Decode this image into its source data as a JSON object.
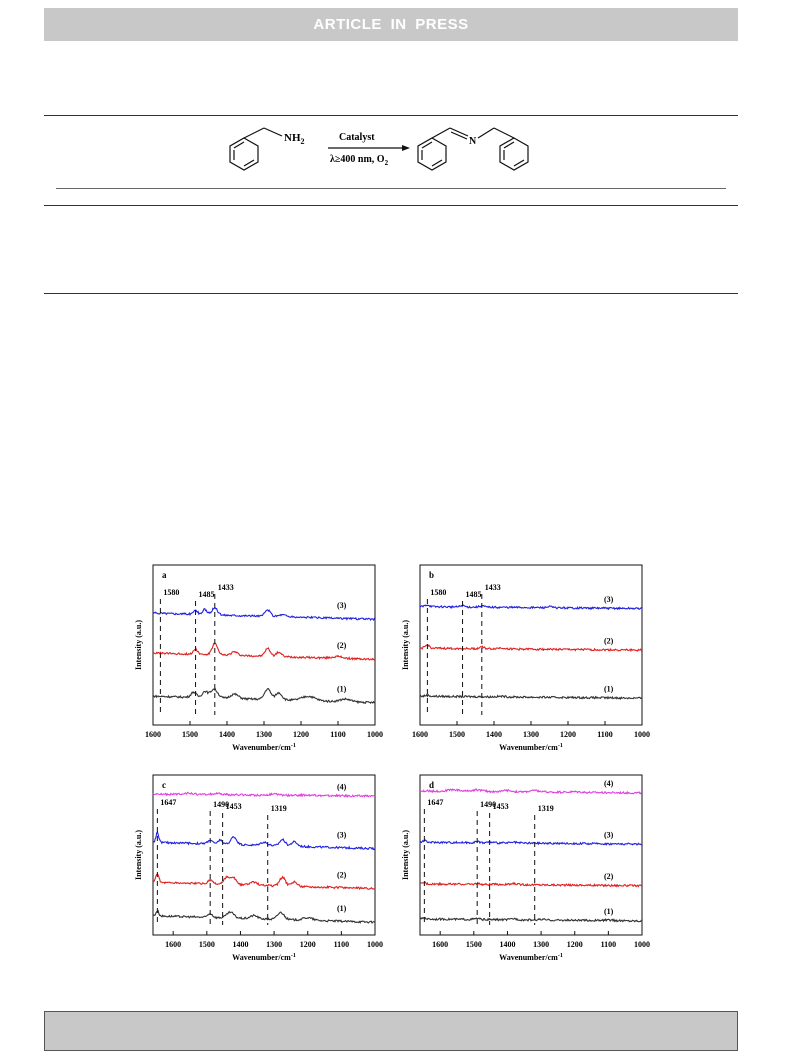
{
  "header": {
    "banner": "ARTICLE IN PRESS"
  },
  "scheme": {
    "reactant_label": "NH",
    "reactant_subscript": "2",
    "catalyst": "Catalyst",
    "conditions": "λ≥400 nm, O",
    "conditions_subscript": "2",
    "product_atom": "N"
  },
  "colors": {
    "c1": "#333333",
    "c2": "#e02020",
    "c3": "#2020e0",
    "c4": "#e040e0",
    "banner": "#c8c8c8"
  },
  "chart_data": [
    {
      "type": "line",
      "panel_label": "a",
      "xlabel": "Wavenumber/cm",
      "xlabel_sup": "-1",
      "ylabel": "Intensity (a.u.)",
      "xlim": [
        1600,
        1000
      ],
      "xticks": [
        1600,
        1500,
        1400,
        1300,
        1200,
        1100,
        1000
      ],
      "annotations": [
        1580,
        1485,
        1433
      ],
      "series": [
        {
          "name": "(1)",
          "offset": 0.18,
          "amp": 0.22,
          "peaks": [
            [
              1490,
              0.6,
              10
            ],
            [
              1460,
              0.7,
              10
            ],
            [
              1435,
              1.0,
              14
            ],
            [
              1380,
              0.5,
              15
            ],
            [
              1290,
              1.2,
              12
            ],
            [
              1260,
              0.8,
              12
            ],
            [
              1180,
              0.5,
              25
            ],
            [
              1080,
              0.3,
              20
            ]
          ]
        },
        {
          "name": "(2)",
          "offset": 0.45,
          "amp": 0.22,
          "peaks": [
            [
              1485,
              0.6,
              8
            ],
            [
              1433,
              1.3,
              10
            ],
            [
              1380,
              0.4,
              12
            ],
            [
              1290,
              0.9,
              10
            ],
            [
              1260,
              0.5,
              10
            ],
            [
              1100,
              0.2,
              20
            ]
          ]
        },
        {
          "name": "(3)",
          "offset": 0.7,
          "amp": 0.16,
          "peaks": [
            [
              1485,
              0.6,
              8
            ],
            [
              1460,
              0.8,
              8
            ],
            [
              1433,
              1.1,
              10
            ],
            [
              1290,
              1.0,
              10
            ],
            [
              1250,
              0.3,
              15
            ]
          ]
        }
      ]
    },
    {
      "type": "line",
      "panel_label": "b",
      "xlabel": "Wavenumber/cm",
      "xlabel_sup": "-1",
      "ylabel": "Intensity (a.u.)",
      "xlim": [
        1600,
        1000
      ],
      "xticks": [
        1600,
        1500,
        1400,
        1300,
        1200,
        1100,
        1000
      ],
      "annotations": [
        1580,
        1485,
        1433
      ],
      "series": [
        {
          "name": "(1)",
          "offset": 0.18,
          "amp": 0.05,
          "peaks": [
            [
              1580,
              0.5,
              8
            ],
            [
              1380,
              0.3,
              15
            ]
          ]
        },
        {
          "name": "(2)",
          "offset": 0.48,
          "amp": 0.06,
          "peaks": [
            [
              1580,
              1.3,
              8
            ],
            [
              1433,
              0.8,
              8
            ],
            [
              1380,
              0.4,
              15
            ]
          ]
        },
        {
          "name": "(3)",
          "offset": 0.74,
          "amp": 0.06,
          "peaks": [
            [
              1580,
              0.8,
              8
            ],
            [
              1485,
              0.6,
              8
            ],
            [
              1433,
              0.6,
              8
            ],
            [
              1250,
              0.4,
              10
            ]
          ]
        }
      ]
    },
    {
      "type": "line",
      "panel_label": "c",
      "xlabel": "Wavenumber/cm",
      "xlabel_sup": "-1",
      "ylabel": "Intensity (a.u.)",
      "xlim": [
        1660,
        1000
      ],
      "xticks": [
        1600,
        1500,
        1400,
        1300,
        1200,
        1100,
        1000
      ],
      "annotations": [
        1647,
        1490,
        1453,
        1319
      ],
      "series": [
        {
          "name": "(1)",
          "offset": 0.12,
          "amp": 0.16,
          "peaks": [
            [
              1647,
              0.8,
              6
            ],
            [
              1490,
              0.6,
              10
            ],
            [
              1430,
              0.9,
              15
            ],
            [
              1360,
              0.5,
              15
            ],
            [
              1280,
              1.1,
              14
            ],
            [
              1200,
              0.4,
              20
            ]
          ]
        },
        {
          "name": "(2)",
          "offset": 0.33,
          "amp": 0.18,
          "peaks": [
            [
              1647,
              1.3,
              6
            ],
            [
              1490,
              0.5,
              10
            ],
            [
              1440,
              1.0,
              12
            ],
            [
              1420,
              0.9,
              10
            ],
            [
              1360,
              0.4,
              15
            ],
            [
              1275,
              1.2,
              12
            ],
            [
              1240,
              0.6,
              12
            ]
          ]
        },
        {
          "name": "(3)",
          "offset": 0.58,
          "amp": 0.16,
          "peaks": [
            [
              1647,
              1.5,
              6
            ],
            [
              1490,
              0.6,
              10
            ],
            [
              1460,
              0.7,
              8
            ],
            [
              1420,
              1.2,
              12
            ],
            [
              1330,
              0.5,
              15
            ],
            [
              1275,
              1.0,
              12
            ],
            [
              1240,
              0.7,
              12
            ]
          ]
        },
        {
          "name": "(4)",
          "offset": 0.88,
          "amp": 0.04,
          "peaks": [
            [
              1560,
              0.8,
              25
            ],
            [
              1470,
              0.6,
              25
            ],
            [
              1300,
              0.6,
              25
            ],
            [
              1200,
              0.3,
              25
            ]
          ]
        }
      ]
    },
    {
      "type": "line",
      "panel_label": "d",
      "xlabel": "Wavenumber/cm",
      "xlabel_sup": "-1",
      "ylabel": "Intensity (a.u.)",
      "xlim": [
        1660,
        1000
      ],
      "xticks": [
        1600,
        1500,
        1400,
        1300,
        1200,
        1100,
        1000
      ],
      "annotations": [
        1647,
        1490,
        1453,
        1319
      ],
      "series": [
        {
          "name": "(1)",
          "offset": 0.1,
          "amp": 0.05,
          "peaks": [
            [
              1647,
              0.8,
              6
            ],
            [
              1490,
              0.5,
              10
            ],
            [
              1380,
              0.6,
              12
            ],
            [
              1300,
              0.3,
              15
            ],
            [
              1100,
              0.3,
              20
            ]
          ]
        },
        {
          "name": "(2)",
          "offset": 0.32,
          "amp": 0.05,
          "peaks": [
            [
              1647,
              0.7,
              6
            ],
            [
              1490,
              0.4,
              10
            ],
            [
              1380,
              0.5,
              12
            ]
          ]
        },
        {
          "name": "(3)",
          "offset": 0.58,
          "amp": 0.05,
          "peaks": [
            [
              1647,
              0.8,
              6
            ],
            [
              1490,
              0.5,
              10
            ],
            [
              1453,
              0.4,
              10
            ],
            [
              1380,
              0.3,
              12
            ]
          ]
        },
        {
          "name": "(4)",
          "offset": 0.9,
          "amp": 0.05,
          "peaks": [
            [
              1560,
              0.8,
              25
            ],
            [
              1490,
              0.8,
              25
            ],
            [
              1400,
              0.6,
              20
            ],
            [
              1320,
              0.7,
              20
            ],
            [
              1200,
              0.3,
              25
            ]
          ]
        }
      ]
    }
  ]
}
